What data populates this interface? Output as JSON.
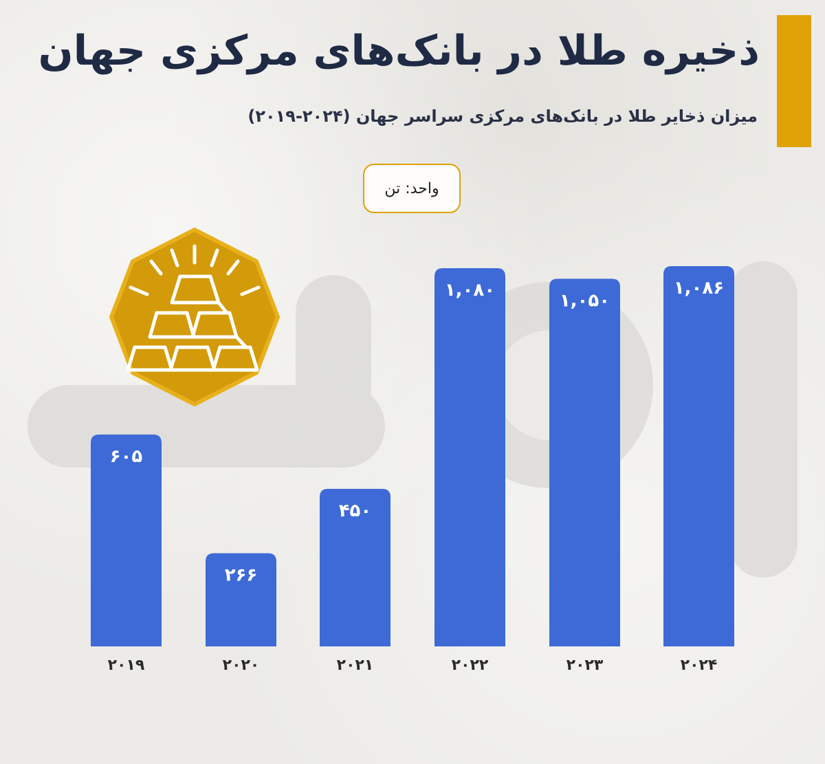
{
  "header": {
    "title": "ذخیره طلا در بانک‌های مرکزی جهان",
    "subtitle": "میزان ذخایر طلا در بانک‌های مرکزی سراسر جهان (۲۰۲۴-۲۰۱۹)",
    "unit": "واحد: تن"
  },
  "colors": {
    "bar": "#3d6ad6",
    "accent": "#e0a106",
    "title": "#1f2a44"
  },
  "icons": [
    "gold-bars-icon"
  ],
  "chart_data": {
    "type": "bar",
    "categories": [
      "۲۰۱۹",
      "۲۰۲۰",
      "۲۰۲۱",
      "۲۰۲۲",
      "۲۰۲۳",
      "۲۰۲۴"
    ],
    "values": [
      605,
      266,
      450,
      1080,
      1050,
      1086
    ],
    "value_labels": [
      "۶۰۵",
      "۲۶۶",
      "۴۵۰",
      "۱,۰۸۰",
      "۱,۰۵۰",
      "۱,۰۸۶"
    ],
    "ylim": [
      0,
      1086
    ],
    "grid": false,
    "legend": "none"
  }
}
